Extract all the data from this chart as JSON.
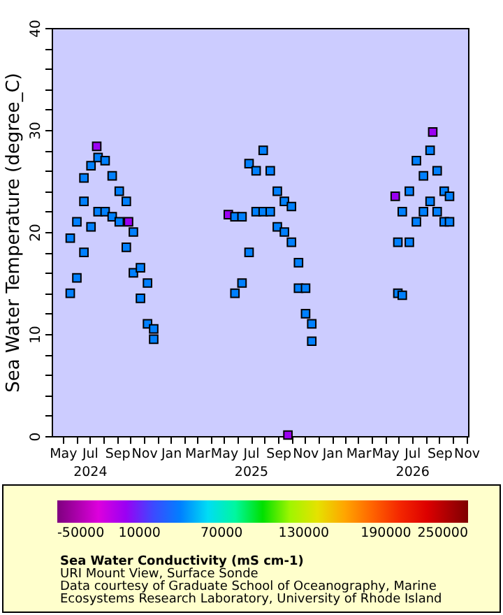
{
  "chart_data": {
    "type": "scatter",
    "ylabel": "Sea Water Temperature (degree_C)",
    "clabel": "Sea Water Conductivity (mS cm-1)",
    "annotations": [
      "URI Mount View, Surface Sonde",
      "Data courtesy of Graduate School of Oceanography, Marine",
      "Ecosystems Research Laboratory, University of Rhode Island"
    ],
    "marker": "square",
    "grid": false,
    "xlim": [
      "2024-04-06",
      "2026-11-05"
    ],
    "ylim": [
      0,
      40
    ],
    "yticks": [
      0,
      {
        "value": 2,
        "label": null
      },
      {
        "value": 4,
        "label": null
      },
      {
        "value": 6,
        "label": null
      },
      {
        "value": 8,
        "label": null
      },
      10,
      {
        "value": 12,
        "label": null
      },
      {
        "value": 14,
        "label": null
      },
      {
        "value": 16,
        "label": null
      },
      {
        "value": 18,
        "label": null
      },
      20,
      {
        "value": 22,
        "label": null
      },
      {
        "value": 24,
        "label": null
      },
      {
        "value": 26,
        "label": null
      },
      {
        "value": 28,
        "label": null
      },
      30,
      {
        "value": 32,
        "label": null
      },
      {
        "value": 34,
        "label": null
      },
      {
        "value": 36,
        "label": null
      },
      {
        "value": 38,
        "label": null
      },
      40
    ],
    "xticks": [
      {
        "value": "2024-05-01",
        "label": "May"
      },
      {
        "value": "2024-06-01",
        "label": null
      },
      {
        "value": "2024-07-01",
        "label": "Jul\n2024"
      },
      {
        "value": "2024-08-01",
        "label": null
      },
      {
        "value": "2024-09-01",
        "label": "Sep"
      },
      {
        "value": "2024-10-01",
        "label": null
      },
      {
        "value": "2024-11-01",
        "label": "Nov"
      },
      {
        "value": "2024-12-01",
        "label": null
      },
      {
        "value": "2025-01-01",
        "label": "Jan"
      },
      {
        "value": "2025-02-01",
        "label": null
      },
      {
        "value": "2025-03-01",
        "label": "Mar"
      },
      {
        "value": "2025-04-01",
        "label": null
      },
      {
        "value": "2025-05-01",
        "label": "May"
      },
      {
        "value": "2025-06-01",
        "label": null
      },
      {
        "value": "2025-07-01",
        "label": "Jul\n2025"
      },
      {
        "value": "2025-08-01",
        "label": null
      },
      {
        "value": "2025-09-01",
        "label": "Sep"
      },
      {
        "value": "2025-10-01",
        "label": null
      },
      {
        "value": "2025-11-01",
        "label": "Nov"
      },
      {
        "value": "2025-12-01",
        "label": null
      },
      {
        "value": "2026-01-01",
        "label": "Jan"
      },
      {
        "value": "2026-02-01",
        "label": null
      },
      {
        "value": "2026-03-01",
        "label": "Mar"
      },
      {
        "value": "2026-04-01",
        "label": null
      },
      {
        "value": "2026-05-01",
        "label": "May"
      },
      {
        "value": "2026-06-01",
        "label": null
      },
      {
        "value": "2026-07-01",
        "label": "Jul\n2026"
      },
      {
        "value": "2026-08-01",
        "label": null
      },
      {
        "value": "2026-09-01",
        "label": "Sep"
      },
      {
        "value": "2026-10-01",
        "label": null
      },
      {
        "value": "2026-11-01",
        "label": "Nov"
      }
    ],
    "clim": [
      -50000,
      250000
    ],
    "cticks": [
      -50000,
      10000,
      70000,
      130000,
      190000,
      250000
    ],
    "series": [
      {
        "x": [
          "2024-05-18",
          "2024-05-18",
          "2024-06-02",
          "2024-06-02",
          "2024-06-18",
          "2024-06-18",
          "2024-06-18",
          "2024-07-04",
          "2024-07-04",
          "2024-07-17",
          "2024-07-20",
          "2024-07-20",
          "2024-08-05",
          "2024-08-05",
          "2024-08-21",
          "2024-08-21",
          "2024-09-06",
          "2024-09-06",
          "2024-09-22",
          "2024-09-22",
          "2024-09-27",
          "2024-10-08",
          "2024-10-08",
          "2024-10-24",
          "2024-10-24",
          "2024-11-09",
          "2024-11-09",
          "2024-11-23",
          "2024-11-23",
          "2025-05-11",
          "2025-05-26",
          "2025-05-26",
          "2025-06-11",
          "2025-06-11",
          "2025-06-27",
          "2025-06-27",
          "2025-07-13",
          "2025-07-13",
          "2025-07-29",
          "2025-07-29",
          "2025-08-14",
          "2025-08-14",
          "2025-08-30",
          "2025-08-30",
          "2025-09-15",
          "2025-09-15",
          "2025-09-23",
          "2025-10-01",
          "2025-10-01",
          "2025-10-17",
          "2025-10-17",
          "2025-11-02",
          "2025-11-02",
          "2025-11-16",
          "2025-11-16",
          "2026-05-24",
          "2026-05-30",
          "2026-05-30",
          "2026-06-09",
          "2026-06-09",
          "2026-06-25",
          "2026-06-25",
          "2026-07-11",
          "2026-07-11",
          "2026-07-27",
          "2026-07-27",
          "2026-08-11",
          "2026-08-11",
          "2026-08-17",
          "2026-08-27",
          "2026-08-27",
          "2026-09-12",
          "2026-09-12",
          "2026-09-24",
          "2026-09-24"
        ],
        "values": [
          14,
          19.4,
          15.5,
          21,
          18,
          23,
          25.3,
          20.5,
          26.5,
          28.4,
          22,
          27.3,
          22,
          27,
          21.5,
          25.5,
          21,
          24,
          18.5,
          23,
          21,
          16,
          20,
          13.5,
          16.5,
          11,
          15,
          9.5,
          10.5,
          21.7,
          14,
          21.5,
          15,
          21.5,
          18,
          26.7,
          22,
          26,
          22,
          28,
          22,
          26,
          20.5,
          24,
          20,
          23,
          0.1,
          19,
          22.5,
          14.5,
          17,
          12,
          14.5,
          9.3,
          11,
          23.5,
          14,
          19,
          13.8,
          22,
          19,
          24,
          21,
          27,
          22,
          25.5,
          23,
          28,
          29.8,
          22,
          26,
          21,
          24,
          21,
          23.5
        ],
        "cvalues": [
          40000,
          40000,
          40000,
          40000,
          40000,
          40000,
          40000,
          40000,
          40000,
          0,
          40000,
          40000,
          40000,
          40000,
          40000,
          40000,
          40000,
          40000,
          40000,
          40000,
          0,
          40000,
          40000,
          40000,
          40000,
          40000,
          40000,
          40000,
          40000,
          0,
          40000,
          40000,
          40000,
          40000,
          40000,
          40000,
          40000,
          40000,
          40000,
          40000,
          40000,
          40000,
          40000,
          40000,
          40000,
          40000,
          0,
          40000,
          40000,
          40000,
          40000,
          40000,
          40000,
          40000,
          40000,
          0,
          40000,
          40000,
          40000,
          40000,
          40000,
          40000,
          40000,
          40000,
          40000,
          40000,
          40000,
          40000,
          0,
          40000,
          40000,
          40000,
          40000,
          40000,
          40000
        ]
      }
    ]
  }
}
